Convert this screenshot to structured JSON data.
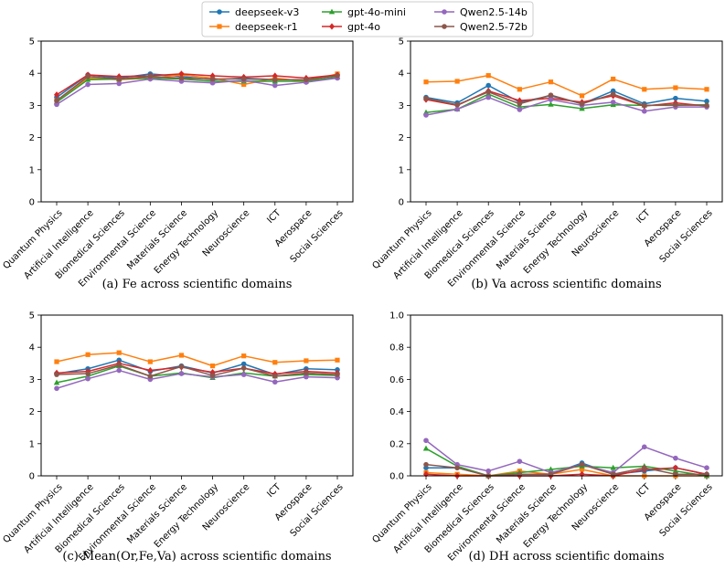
{
  "legend": {
    "entries": [
      {
        "name": "deepseek-v3",
        "color": "#1f77b4",
        "marker": "circle"
      },
      {
        "name": "deepseek-r1",
        "color": "#ff7f0e",
        "marker": "square"
      },
      {
        "name": "gpt-4o-mini",
        "color": "#2ca02c",
        "marker": "triangle"
      },
      {
        "name": "gpt-4o",
        "color": "#d62728",
        "marker": "diamond"
      },
      {
        "name": "Qwen2.5-14b",
        "color": "#9467bd",
        "marker": "circle"
      },
      {
        "name": "Qwen2.5-72b",
        "color": "#8c564b",
        "marker": "circle"
      }
    ]
  },
  "chart_data": [
    {
      "type": "line",
      "caption": "(a) Fe across scientific domains",
      "ylim": [
        0,
        5
      ],
      "yticks": [
        "0",
        "1",
        "2",
        "3",
        "4",
        "5"
      ],
      "categories": [
        "Quantum Physics",
        "Artificial Intelligence",
        "Biomedical Sciences",
        "Environmental Science",
        "Materials Science",
        "Energy Technology",
        "Neuroscience",
        "ICT",
        "Aerospace",
        "Social Sciences"
      ],
      "series": [
        {
          "name": "deepseek-v3",
          "values": [
            3.25,
            3.95,
            3.85,
            3.98,
            3.9,
            3.8,
            3.85,
            3.8,
            3.8,
            3.95
          ]
        },
        {
          "name": "deepseek-r1",
          "values": [
            3.15,
            3.85,
            3.8,
            3.85,
            3.95,
            3.85,
            3.65,
            3.85,
            3.75,
            3.98
          ]
        },
        {
          "name": "gpt-4o-mini",
          "values": [
            3.1,
            3.8,
            3.82,
            3.85,
            3.82,
            3.75,
            3.75,
            3.75,
            3.75,
            3.88
          ]
        },
        {
          "name": "gpt-4o",
          "values": [
            3.33,
            3.95,
            3.9,
            3.92,
            3.98,
            3.92,
            3.88,
            3.92,
            3.85,
            3.95
          ]
        },
        {
          "name": "Qwen2.5-14b",
          "values": [
            3.03,
            3.65,
            3.68,
            3.82,
            3.75,
            3.7,
            3.78,
            3.62,
            3.72,
            3.85
          ]
        },
        {
          "name": "Qwen2.5-72b",
          "values": [
            3.15,
            3.9,
            3.82,
            3.9,
            3.85,
            3.82,
            3.82,
            3.8,
            3.8,
            3.92
          ]
        }
      ]
    },
    {
      "type": "line",
      "caption": "(b) Va across scientific domains",
      "ylim": [
        0,
        5
      ],
      "yticks": [
        "0",
        "1",
        "2",
        "3",
        "4",
        "5"
      ],
      "categories": [
        "Quantum Physics",
        "Artificial Intelligence",
        "Biomedical Sciences",
        "Environmental Science",
        "Materials Science",
        "Energy Technology",
        "Neuroscience",
        "ICT",
        "Aerospace",
        "Social Sciences"
      ],
      "series": [
        {
          "name": "deepseek-v3",
          "values": [
            3.25,
            3.08,
            3.62,
            3.1,
            3.3,
            3.05,
            3.45,
            3.05,
            3.22,
            3.13
          ]
        },
        {
          "name": "deepseek-r1",
          "values": [
            3.73,
            3.75,
            3.93,
            3.5,
            3.73,
            3.3,
            3.82,
            3.5,
            3.55,
            3.5
          ]
        },
        {
          "name": "gpt-4o-mini",
          "values": [
            2.78,
            2.88,
            3.35,
            2.95,
            3.03,
            2.9,
            3.02,
            3.0,
            3.0,
            3.02
          ]
        },
        {
          "name": "gpt-4o",
          "values": [
            3.18,
            3.0,
            3.45,
            3.15,
            3.22,
            3.1,
            3.3,
            2.98,
            3.08,
            2.98
          ]
        },
        {
          "name": "Qwen2.5-14b",
          "values": [
            2.7,
            2.88,
            3.25,
            2.87,
            3.18,
            3.0,
            3.1,
            2.82,
            2.95,
            2.95
          ]
        },
        {
          "name": "Qwen2.5-72b",
          "values": [
            3.22,
            3.02,
            3.42,
            3.05,
            3.32,
            3.05,
            3.35,
            3.0,
            3.02,
            3.0
          ]
        }
      ]
    },
    {
      "type": "line",
      "caption": "(c) Mean(Or,Fe,Va) across scientific domains",
      "ylim": [
        0,
        5
      ],
      "yticks": [
        "0",
        "1",
        "2",
        "3",
        "4",
        "5"
      ],
      "categories": [
        "Quantum Physics",
        "Artificial Intelligence",
        "Biomedical Sciences",
        "Environmental Science",
        "Materials Science",
        "Energy Technology",
        "Neuroscience",
        "ICT",
        "Aerospace",
        "Social Sciences"
      ],
      "series": [
        {
          "name": "deepseek-v3",
          "values": [
            3.18,
            3.33,
            3.6,
            3.25,
            3.42,
            3.2,
            3.48,
            3.15,
            3.33,
            3.3
          ]
        },
        {
          "name": "deepseek-r1",
          "values": [
            3.55,
            3.77,
            3.83,
            3.55,
            3.75,
            3.42,
            3.73,
            3.53,
            3.58,
            3.6
          ]
        },
        {
          "name": "gpt-4o-mini",
          "values": [
            2.9,
            3.1,
            3.42,
            3.1,
            3.2,
            3.05,
            3.2,
            3.1,
            3.15,
            3.12
          ]
        },
        {
          "name": "gpt-4o",
          "values": [
            3.2,
            3.25,
            3.5,
            3.28,
            3.38,
            3.22,
            3.35,
            3.17,
            3.25,
            3.2
          ]
        },
        {
          "name": "Qwen2.5-14b",
          "values": [
            2.72,
            3.02,
            3.28,
            3.0,
            3.18,
            3.08,
            3.15,
            2.92,
            3.08,
            3.05
          ]
        },
        {
          "name": "Qwen2.5-72b",
          "values": [
            3.15,
            3.18,
            3.45,
            3.1,
            3.4,
            3.12,
            3.35,
            3.1,
            3.2,
            3.15
          ]
        }
      ]
    },
    {
      "type": "line",
      "caption": "(d) DH across scientific domains",
      "ylim": [
        0,
        1.0
      ],
      "yticks": [
        "0.0",
        "0.2",
        "0.4",
        "0.6",
        "0.8",
        "1.0"
      ],
      "categories": [
        "Quantum Physics",
        "Artificial Intelligence",
        "Biomedical Sciences",
        "Environmental Science",
        "Materials Science",
        "Energy Technology",
        "Neuroscience",
        "ICT",
        "Aerospace",
        "Social Sciences"
      ],
      "series": [
        {
          "name": "deepseek-v3",
          "values": [
            0.05,
            0.05,
            0.0,
            0.01,
            0.01,
            0.08,
            0.01,
            0.03,
            0.05,
            0.01
          ]
        },
        {
          "name": "deepseek-r1",
          "values": [
            0.02,
            0.01,
            0.0,
            0.03,
            0.01,
            0.04,
            0.0,
            0.0,
            0.0,
            0.0
          ]
        },
        {
          "name": "gpt-4o-mini",
          "values": [
            0.17,
            0.06,
            0.0,
            0.02,
            0.04,
            0.06,
            0.05,
            0.06,
            0.03,
            0.0
          ]
        },
        {
          "name": "gpt-4o",
          "values": [
            0.01,
            0.0,
            0.0,
            0.0,
            0.0,
            0.01,
            0.0,
            0.04,
            0.05,
            0.01
          ]
        },
        {
          "name": "Qwen2.5-14b",
          "values": [
            0.22,
            0.07,
            0.03,
            0.09,
            0.02,
            0.07,
            0.02,
            0.18,
            0.11,
            0.05
          ]
        },
        {
          "name": "Qwen2.5-72b",
          "values": [
            0.07,
            0.05,
            0.0,
            0.01,
            0.01,
            0.07,
            0.01,
            0.05,
            0.01,
            0.01
          ]
        }
      ]
    }
  ]
}
